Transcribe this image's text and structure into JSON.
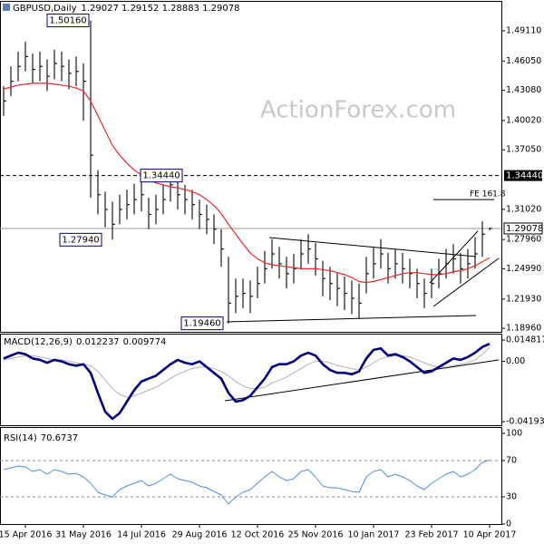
{
  "chart_data": [
    {
      "type": "ohlc",
      "title": "GBPUSD,Daily",
      "quote": "1.29027 1.29152 1.28883 1.29078",
      "watermark": "ActionForex.com",
      "color": "#1a1a1a",
      "high": [
        1.435,
        1.455,
        1.47,
        1.48,
        1.468,
        1.47,
        1.462,
        1.472,
        1.47,
        1.462,
        1.465,
        1.458,
        1.5016,
        1.35,
        1.328,
        1.318,
        1.325,
        1.33,
        1.336,
        1.34,
        1.322,
        1.325,
        1.335,
        1.342,
        1.3444,
        1.335,
        1.33,
        1.32,
        1.315,
        1.305,
        1.29,
        1.262,
        1.24,
        1.24,
        1.238,
        1.252,
        1.268,
        1.28,
        1.272,
        1.262,
        1.265,
        1.28,
        1.285,
        1.276,
        1.258,
        1.252,
        1.246,
        1.242,
        1.238,
        1.235,
        1.262,
        1.272,
        1.28,
        1.266,
        1.27,
        1.266,
        1.26,
        1.25,
        1.24,
        1.25,
        1.26,
        1.27,
        1.275,
        1.266,
        1.27,
        1.282,
        1.298,
        1.29152
      ],
      "low": [
        1.405,
        1.425,
        1.44,
        1.45,
        1.438,
        1.44,
        1.43,
        1.442,
        1.44,
        1.432,
        1.435,
        1.4,
        1.322,
        1.305,
        1.292,
        1.2794,
        1.295,
        1.3,
        1.305,
        1.308,
        1.29,
        1.295,
        1.305,
        1.318,
        1.31,
        1.305,
        1.3,
        1.29,
        1.285,
        1.275,
        1.252,
        1.1946,
        1.205,
        1.21,
        1.205,
        1.22,
        1.235,
        1.25,
        1.24,
        1.23,
        1.235,
        1.25,
        1.255,
        1.243,
        1.222,
        1.218,
        1.212,
        1.208,
        1.204,
        1.199,
        1.225,
        1.24,
        1.25,
        1.235,
        1.24,
        1.235,
        1.23,
        1.22,
        1.21,
        1.22,
        1.23,
        1.24,
        1.245,
        1.235,
        1.24,
        1.25,
        1.262,
        1.28883
      ],
      "close": [
        1.42,
        1.44,
        1.455,
        1.465,
        1.452,
        1.455,
        1.445,
        1.458,
        1.455,
        1.448,
        1.45,
        1.44,
        1.365,
        1.325,
        1.31,
        1.295,
        1.31,
        1.315,
        1.32,
        1.325,
        1.305,
        1.31,
        1.32,
        1.335,
        1.325,
        1.32,
        1.315,
        1.305,
        1.3,
        1.29,
        1.27,
        1.215,
        1.222,
        1.225,
        1.222,
        1.235,
        1.25,
        1.265,
        1.255,
        1.245,
        1.25,
        1.265,
        1.27,
        1.26,
        1.24,
        1.235,
        1.23,
        1.225,
        1.22,
        1.215,
        1.245,
        1.255,
        1.265,
        1.25,
        1.255,
        1.25,
        1.245,
        1.235,
        1.225,
        1.235,
        1.245,
        1.255,
        1.26,
        1.25,
        1.255,
        1.265,
        1.285,
        1.29078
      ],
      "ma": {
        "color": "#e8272d",
        "values": [
          1.432,
          1.434,
          1.436,
          1.437,
          1.438,
          1.438,
          1.438,
          1.437,
          1.436,
          1.435,
          1.433,
          1.43,
          1.42,
          1.405,
          1.39,
          1.375,
          1.365,
          1.357,
          1.35,
          1.345,
          1.34,
          1.337,
          1.335,
          1.333,
          1.332,
          1.33,
          1.328,
          1.325,
          1.32,
          1.314,
          1.306,
          1.295,
          1.285,
          1.275,
          1.266,
          1.26,
          1.256,
          1.254,
          1.253,
          1.252,
          1.251,
          1.25,
          1.25,
          1.25,
          1.249,
          1.248,
          1.246,
          1.244,
          1.241,
          1.237,
          1.236,
          1.237,
          1.239,
          1.241,
          1.243,
          1.245,
          1.246,
          1.246,
          1.245,
          1.244,
          1.244,
          1.245,
          1.247,
          1.248,
          1.25,
          1.253,
          1.257,
          1.261
        ]
      },
      "ylim": [
        1.186,
        1.5205
      ],
      "yticks": [
        {
          "value": 1.4911,
          "label": "1.49110"
        },
        {
          "value": 1.4605,
          "label": "1.46050"
        },
        {
          "value": 1.4308,
          "label": "1.43080"
        },
        {
          "value": 1.4002,
          "label": "1.40020"
        },
        {
          "value": 1.3705,
          "label": "1.37050"
        },
        {
          "value": 1.3102,
          "label": "1.31020"
        },
        {
          "value": 1.2796,
          "label": "1.27960"
        },
        {
          "value": 1.2499,
          "label": "1.24990"
        },
        {
          "value": 1.2193,
          "label": "1.21930"
        },
        {
          "value": 1.1896,
          "label": "1.18960"
        }
      ],
      "levels": [
        {
          "value": 1.3444,
          "label": "1.34440"
        }
      ],
      "last_price": 1.29078,
      "annotations": [
        {
          "value": 1.5016,
          "label": "1.50160"
        },
        {
          "value": 1.3444,
          "label": "1.34440"
        },
        {
          "value": 1.2794,
          "label": "1.27940"
        },
        {
          "value": 1.1946,
          "label": "1.19460"
        },
        {
          "value": 1.32,
          "label": "FE 161.8"
        }
      ]
    },
    {
      "type": "macd",
      "title": "MACD(12,26,9)",
      "series": [
        {
          "color": "#00007f",
          "values": [
            0.002,
            0.004,
            0.006,
            0.005,
            0.002,
            0.001,
            -0.001,
            0.001,
            0.0,
            -0.002,
            -0.003,
            -0.002,
            -0.008,
            -0.022,
            -0.035,
            -0.04,
            -0.036,
            -0.028,
            -0.02,
            -0.014,
            -0.012,
            -0.01,
            -0.006,
            -0.002,
            0.001,
            -0.001,
            -0.002,
            0.0,
            -0.004,
            -0.008,
            -0.012,
            -0.022,
            -0.028,
            -0.027,
            -0.024,
            -0.018,
            -0.012,
            -0.004,
            -0.002,
            -0.002,
            0.0,
            0.004,
            0.006,
            0.004,
            -0.002,
            -0.006,
            -0.008,
            -0.008,
            -0.009,
            -0.007,
            0.002,
            0.008,
            0.009,
            0.004,
            0.005,
            0.003,
            0.0,
            -0.004,
            -0.008,
            -0.007,
            -0.004,
            -0.001,
            0.002,
            0.001,
            0.003,
            0.006,
            0.01,
            0.012237
          ]
        },
        {
          "color": "#b9a9c2",
          "values": [
            0.001,
            0.002,
            0.003,
            0.004,
            0.004,
            0.003,
            0.002,
            0.001,
            0.001,
            0.0,
            -0.001,
            -0.002,
            -0.003,
            -0.007,
            -0.013,
            -0.019,
            -0.023,
            -0.025,
            -0.024,
            -0.022,
            -0.02,
            -0.018,
            -0.015,
            -0.012,
            -0.009,
            -0.007,
            -0.005,
            -0.004,
            -0.004,
            -0.005,
            -0.007,
            -0.01,
            -0.014,
            -0.017,
            -0.019,
            -0.019,
            -0.018,
            -0.015,
            -0.013,
            -0.011,
            -0.008,
            -0.005,
            -0.002,
            0.0,
            0.0,
            -0.001,
            -0.003,
            -0.004,
            -0.005,
            -0.006,
            -0.004,
            -0.001,
            0.002,
            0.003,
            0.004,
            0.004,
            0.003,
            0.001,
            -0.001,
            -0.003,
            -0.004,
            -0.004,
            -0.003,
            -0.002,
            -0.001,
            0.001,
            0.005,
            0.009774
          ]
        }
      ],
      "ylim": [
        -0.0438,
        0.018
      ],
      "yticks": [
        0.014817,
        {
          "value": 0,
          "label": "0.00"
        },
        -0.041932
      ]
    },
    {
      "type": "rsi",
      "title": "RSI(14)",
      "series": [
        {
          "color": "#4f8fd8",
          "values": [
            60,
            62,
            64,
            63,
            58,
            60,
            55,
            60,
            58,
            55,
            56,
            52,
            45,
            35,
            32,
            30,
            38,
            42,
            45,
            48,
            42,
            45,
            50,
            55,
            50,
            48,
            46,
            42,
            40,
            36,
            32,
            22,
            30,
            35,
            38,
            45,
            52,
            58,
            52,
            48,
            50,
            58,
            60,
            52,
            42,
            40,
            40,
            38,
            36,
            35,
            52,
            58,
            60,
            52,
            55,
            52,
            48,
            42,
            38,
            45,
            50,
            55,
            58,
            52,
            55,
            60,
            68,
            70.6737
          ]
        }
      ],
      "ylim": [
        0,
        105
      ],
      "yticks": [
        100,
        70,
        30,
        0
      ],
      "levels": [
        70,
        30
      ],
      "categories": [
        null,
        null,
        null,
        "15 Apr 2016",
        null,
        null,
        null,
        null,
        null,
        null,
        null,
        "31 May 2016",
        null,
        null,
        null,
        null,
        null,
        null,
        null,
        "14 Jul 2016",
        null,
        null,
        null,
        null,
        null,
        null,
        null,
        "29 Aug 2016",
        null,
        null,
        null,
        null,
        null,
        null,
        null,
        "12 Oct 2016",
        null,
        null,
        null,
        null,
        null,
        null,
        null,
        "25 Nov 2016",
        null,
        null,
        null,
        null,
        null,
        null,
        null,
        "10 Jan 2017",
        null,
        null,
        null,
        null,
        null,
        null,
        null,
        "23 Feb 2017",
        null,
        null,
        null,
        null,
        null,
        null,
        null,
        "10 Apr 2017"
      ]
    }
  ]
}
